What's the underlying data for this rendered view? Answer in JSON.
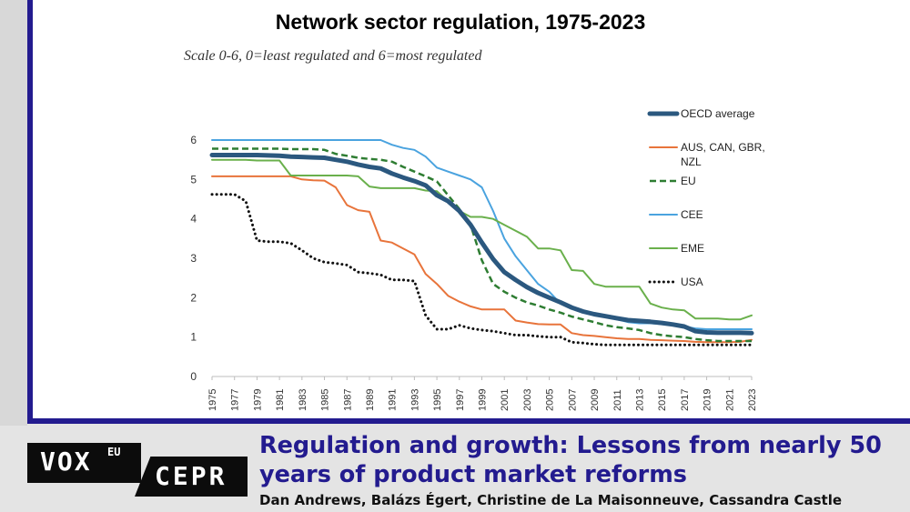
{
  "chart_data": {
    "type": "line",
    "title": "Network sector regulation, 1975-2023",
    "subtitle": "Scale 0-6, 0=least regulated and 6=most regulated",
    "xlabel": "",
    "ylabel": "",
    "xlim": [
      1975,
      2023
    ],
    "ylim": [
      0,
      6
    ],
    "yticks": [
      "0",
      "1",
      "2",
      "3",
      "4",
      "5",
      "6"
    ],
    "xticks": [
      "1975",
      "1977",
      "1979",
      "1981",
      "1983",
      "1985",
      "1987",
      "1989",
      "1991",
      "1993",
      "1995",
      "1997",
      "1999",
      "2001",
      "2003",
      "2005",
      "2007",
      "2009",
      "2011",
      "2013",
      "2015",
      "2017",
      "2019",
      "2021",
      "2023"
    ],
    "grid": false,
    "legend": "right",
    "x": [
      1975,
      1976,
      1977,
      1978,
      1979,
      1980,
      1981,
      1982,
      1983,
      1984,
      1985,
      1986,
      1987,
      1988,
      1989,
      1990,
      1991,
      1992,
      1993,
      1994,
      1995,
      1996,
      1997,
      1998,
      1999,
      2000,
      2001,
      2002,
      2003,
      2004,
      2005,
      2006,
      2007,
      2008,
      2009,
      2010,
      2011,
      2012,
      2013,
      2014,
      2015,
      2016,
      2017,
      2018,
      2019,
      2020,
      2021,
      2022,
      2023
    ],
    "series": [
      {
        "name": "OECD average",
        "color": "#2b587f",
        "style": "thick",
        "values": [
          5.62,
          5.62,
          5.62,
          5.62,
          5.62,
          5.61,
          5.6,
          5.58,
          5.57,
          5.56,
          5.55,
          5.5,
          5.45,
          5.38,
          5.32,
          5.28,
          5.15,
          5.05,
          4.96,
          4.85,
          4.6,
          4.45,
          4.2,
          3.85,
          3.4,
          2.98,
          2.65,
          2.45,
          2.27,
          2.12,
          2.0,
          1.88,
          1.75,
          1.65,
          1.58,
          1.53,
          1.48,
          1.43,
          1.41,
          1.39,
          1.36,
          1.32,
          1.27,
          1.15,
          1.12,
          1.11,
          1.11,
          1.11,
          1.1
        ]
      },
      {
        "name": "AUS, CAN, GBR, NZL",
        "color": "#e8743b",
        "style": "solid",
        "values": [
          5.08,
          5.08,
          5.08,
          5.08,
          5.08,
          5.08,
          5.08,
          5.08,
          5.0,
          4.98,
          4.97,
          4.8,
          4.35,
          4.22,
          4.18,
          3.45,
          3.4,
          3.25,
          3.1,
          2.6,
          2.35,
          2.05,
          1.9,
          1.78,
          1.7,
          1.7,
          1.7,
          1.42,
          1.37,
          1.33,
          1.32,
          1.32,
          1.1,
          1.05,
          1.03,
          1.0,
          0.97,
          0.95,
          0.95,
          0.93,
          0.92,
          0.91,
          0.9,
          0.88,
          0.87,
          0.87,
          0.87,
          0.88,
          0.93
        ]
      },
      {
        "name": "EU",
        "color": "#2e7d32",
        "style": "dashed",
        "values": [
          5.78,
          5.78,
          5.78,
          5.78,
          5.78,
          5.78,
          5.78,
          5.77,
          5.77,
          5.77,
          5.75,
          5.65,
          5.6,
          5.55,
          5.52,
          5.5,
          5.45,
          5.32,
          5.2,
          5.08,
          4.95,
          4.6,
          4.25,
          3.85,
          2.95,
          2.35,
          2.15,
          2.0,
          1.88,
          1.8,
          1.7,
          1.62,
          1.52,
          1.45,
          1.38,
          1.3,
          1.25,
          1.22,
          1.18,
          1.1,
          1.05,
          1.02,
          1.0,
          0.95,
          0.92,
          0.9,
          0.9,
          0.9,
          0.9
        ]
      },
      {
        "name": "CEE",
        "color": "#4aa3df",
        "style": "solid",
        "values": [
          6.0,
          6.0,
          6.0,
          6.0,
          6.0,
          6.0,
          6.0,
          6.0,
          6.0,
          6.0,
          6.0,
          6.0,
          6.0,
          6.0,
          6.0,
          6.0,
          5.88,
          5.8,
          5.75,
          5.58,
          5.3,
          5.2,
          5.1,
          5.0,
          4.8,
          4.2,
          3.5,
          3.05,
          2.7,
          2.35,
          2.15,
          1.85,
          1.72,
          1.65,
          1.58,
          1.52,
          1.45,
          1.38,
          1.35,
          1.35,
          1.33,
          1.3,
          1.27,
          1.22,
          1.2,
          1.2,
          1.2,
          1.2,
          1.2
        ]
      },
      {
        "name": "EME",
        "color": "#6ab04c",
        "style": "solid",
        "values": [
          5.5,
          5.5,
          5.5,
          5.5,
          5.48,
          5.48,
          5.48,
          5.1,
          5.1,
          5.1,
          5.1,
          5.1,
          5.1,
          5.08,
          4.82,
          4.78,
          4.78,
          4.78,
          4.78,
          4.72,
          4.7,
          4.45,
          4.2,
          4.05,
          4.05,
          4.0,
          3.85,
          3.7,
          3.55,
          3.25,
          3.25,
          3.2,
          2.7,
          2.68,
          2.35,
          2.28,
          2.28,
          2.28,
          2.28,
          1.85,
          1.75,
          1.7,
          1.68,
          1.47,
          1.47,
          1.47,
          1.45,
          1.45,
          1.55
        ]
      },
      {
        "name": "USA",
        "color": "#111111",
        "style": "dotted",
        "values": [
          4.62,
          4.62,
          4.62,
          4.45,
          3.45,
          3.42,
          3.42,
          3.38,
          3.2,
          3.0,
          2.9,
          2.87,
          2.83,
          2.65,
          2.62,
          2.58,
          2.45,
          2.45,
          2.42,
          1.55,
          1.2,
          1.2,
          1.3,
          1.22,
          1.18,
          1.15,
          1.1,
          1.05,
          1.05,
          1.02,
          1.0,
          1.0,
          0.87,
          0.85,
          0.82,
          0.8,
          0.8,
          0.8,
          0.8,
          0.8,
          0.8,
          0.8,
          0.8,
          0.8,
          0.8,
          0.8,
          0.8,
          0.8,
          0.8
        ]
      }
    ]
  },
  "footer": {
    "logo_vox": "VOX",
    "logo_eu": "EU",
    "logo_cepr": "CEPR",
    "article_title": "Regulation and growth: Lessons from nearly 50 years of product market reforms",
    "authors": "Dan Andrews, Balázs Égert, Christine de La Maisonneuve, Cassandra Castle"
  }
}
